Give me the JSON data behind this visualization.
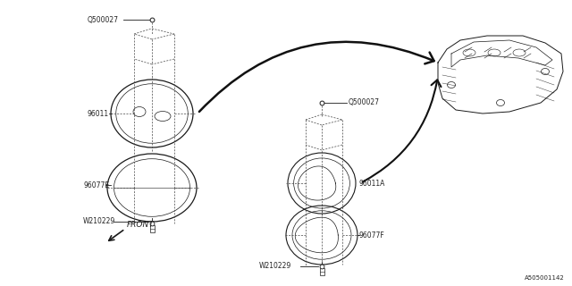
{
  "bg_color": "#ffffff",
  "line_color": "#1a1a1a",
  "dash_color": "#555555",
  "text_color": "#222222",
  "labels": {
    "Q500027_left": "Q500027",
    "96011": "96011",
    "96077E": "96077E",
    "W210229_left": "W210229",
    "Q500027_right": "Q500027",
    "96011A": "96011A",
    "96077F": "96077F",
    "W210229_right": "W210229",
    "FRONT": "FRONT",
    "part_number": "A505001142"
  },
  "font_size": 5.5,
  "xlim": [
    0,
    640
  ],
  "ylim": [
    0,
    320
  ]
}
